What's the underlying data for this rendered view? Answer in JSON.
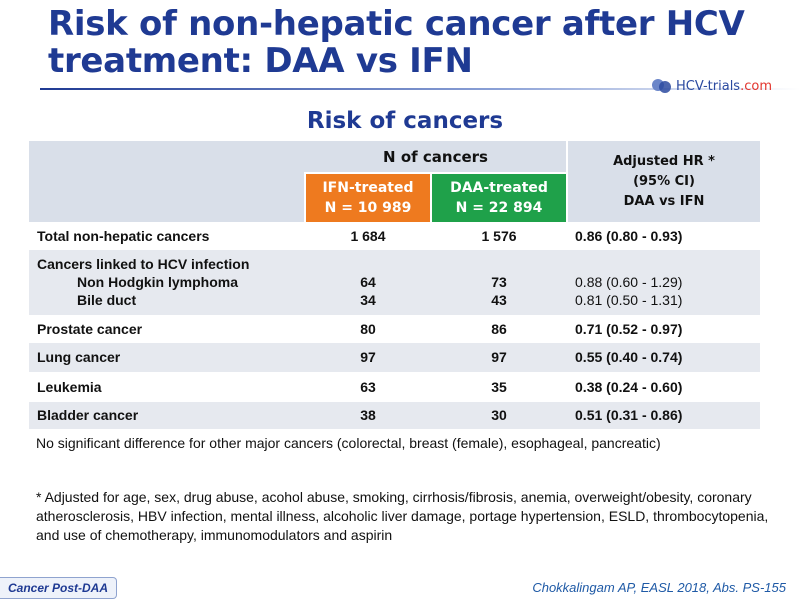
{
  "slide": {
    "title": "Risk of non-hepatic cancer after HCV treatment: DAA vs IFN",
    "logo_text_main": "HCV-trials",
    "logo_text_suffix": ".com",
    "subtitle": "Risk of cancers"
  },
  "table": {
    "header": {
      "n_of_cancers": "N of cancers",
      "ifn_label": "IFN-treated",
      "ifn_n": "N = 10 989",
      "daa_label": "DAA-treated",
      "daa_n": "N = 22 894",
      "hr_line1": "Adjusted  HR *",
      "hr_line2": "(95% CI)",
      "hr_line3": "DAA vs IFN"
    },
    "rows": [
      {
        "label": "Total non-hepatic cancers",
        "ifn": "1 684",
        "daa": "1 576",
        "hr": "0.86 (0.80 - 0.93)"
      },
      {
        "label": "Cancers linked to HCV infection"
      },
      {
        "label": "Non Hodgkin lymphoma",
        "ifn": "64",
        "daa": "73",
        "hr": "0.88 (0.60 - 1.29)"
      },
      {
        "label": "Bile duct",
        "ifn": "34",
        "daa": "43",
        "hr": "0.81 (0.50 - 1.31)"
      },
      {
        "label": "Prostate cancer",
        "ifn": "80",
        "daa": "86",
        "hr": "0.71 (0.52 - 0.97)"
      },
      {
        "label": "Lung cancer",
        "ifn": "97",
        "daa": "97",
        "hr": "0.55 (0.40 - 0.74)"
      },
      {
        "label": "Leukemia",
        "ifn": "63",
        "daa": "35",
        "hr": "0.38 (0.24 - 0.60)"
      },
      {
        "label": "Bladder cancer",
        "ifn": "38",
        "daa": "30",
        "hr": "0.51 (0.31 - 0.86)"
      }
    ]
  },
  "note": "No significant difference for other major cancers (colorectal, breast (female), esophageal, pancreatic)",
  "footnote": "* Adjusted for age, sex, drug abuse, acohol abuse, smoking, cirrhosis/fibrosis, anemia, overweight/obesity, coronary atherosclerosis, HBV infection, mental illness, alcoholic liver damage, portage hypertension, ESLD, thrombocytopenia, and use of chemotherapy, immunomodulators and aspirin",
  "tag": "Cancer Post-DAA",
  "citation": "Chokkalingam AP, EASL 2018, Abs. PS-155",
  "colors": {
    "title": "#1f3a93",
    "ifn_header": "#ee7a1f",
    "daa_header": "#1fa14a",
    "table_grey": "#e6e9ef",
    "citation": "#1f5aa6"
  }
}
